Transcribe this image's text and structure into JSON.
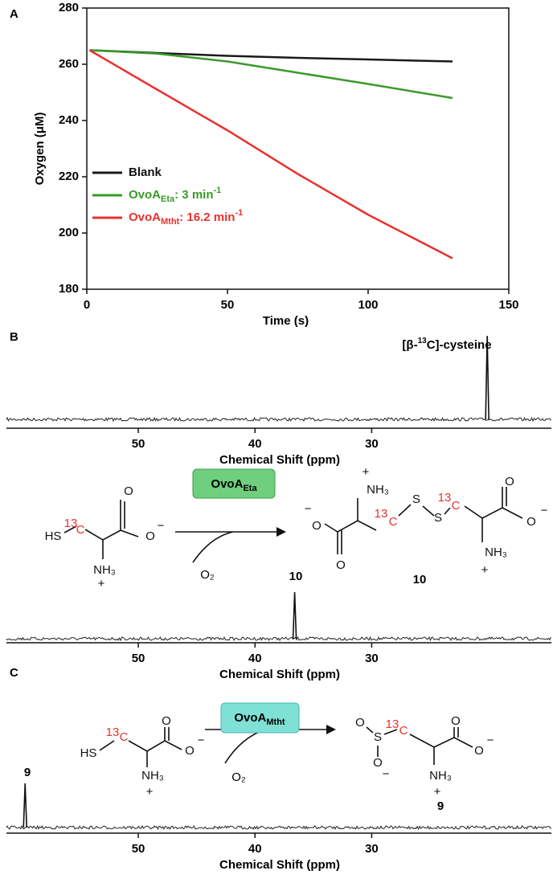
{
  "panel_labels": [
    "A",
    "B",
    "C"
  ],
  "chart_data": [
    {
      "type": "line",
      "xlabel": "Time (s)",
      "ylabel": "Oxygen (μM)",
      "x": [
        1,
        25,
        50,
        75,
        100,
        130
      ],
      "series": [
        {
          "name": "Blank",
          "color": "#1a1a1a",
          "values": [
            265,
            264,
            263,
            262.3,
            261.7,
            261
          ]
        },
        {
          "name": "OvoA",
          "name_sub": "Eta",
          "name_tail": ": 3 min",
          "name_sup": "-1",
          "color": "#3a9a2a",
          "values": [
            265,
            263.8,
            261,
            257,
            253,
            248
          ]
        },
        {
          "name": "OvoA",
          "name_sub": "Mtht",
          "name_tail": ": 16.2 min",
          "name_sup": "-1",
          "color": "#e8312f",
          "values": [
            265,
            251,
            236.5,
            221,
            206.5,
            191
          ]
        }
      ],
      "xlim": [
        0,
        150
      ],
      "ylim": [
        180,
        280
      ],
      "xticks": [
        0,
        50,
        100,
        150
      ],
      "yticks": [
        180,
        200,
        220,
        240,
        260,
        280
      ],
      "legend": "left"
    },
    {
      "type": "spectrum",
      "xlabel": "Chemical Shift (ppm)",
      "xlim": [
        61.3,
        14.6
      ],
      "xticks": [
        50,
        40,
        30
      ],
      "peaks": [
        {
          "x": 20.1,
          "label_pre": "[β-",
          "label_sup": "13",
          "label_post": "C]-cysteine"
        }
      ]
    },
    {
      "type": "spectrum",
      "xlabel": "Chemical Shift (ppm)",
      "xlim": [
        61.3,
        14.6
      ],
      "xticks": [
        50,
        40,
        30
      ],
      "peaks": [
        {
          "x": 36.6,
          "label_pre": "10"
        }
      ]
    },
    {
      "type": "spectrum",
      "xlabel": "Chemical Shift (ppm)",
      "xlim": [
        61.3,
        14.6
      ],
      "xticks": [
        50,
        40,
        30
      ],
      "peaks": [
        {
          "x": 59.7,
          "label_pre": "9"
        }
      ]
    }
  ],
  "schemes": [
    {
      "enzyme": "OvoA",
      "enzyme_sub": "Eta",
      "cosubstrate": "O₂",
      "reactant_texts": [
        "HS",
        "13",
        "C",
        "O",
        "O",
        "−",
        "NH₃",
        "+"
      ],
      "product_texts": [
        "−",
        "O",
        "O",
        "NH₃",
        "+",
        "13",
        "C",
        "S",
        "S",
        "13",
        "C",
        "O",
        "O",
        "−",
        "NH₃",
        "+"
      ],
      "product_label": "10"
    },
    {
      "enzyme": "OvoA",
      "enzyme_sub": "Mtht",
      "cosubstrate": "O₂",
      "reactant_texts": [
        "HS",
        "13",
        "C",
        "O",
        "O",
        "−",
        "NH₃",
        "+"
      ],
      "product_texts": [
        "O",
        "S",
        "O",
        "−",
        "13",
        "C",
        "O",
        "O",
        "−",
        "NH₃",
        "+"
      ],
      "product_label": "9"
    }
  ]
}
